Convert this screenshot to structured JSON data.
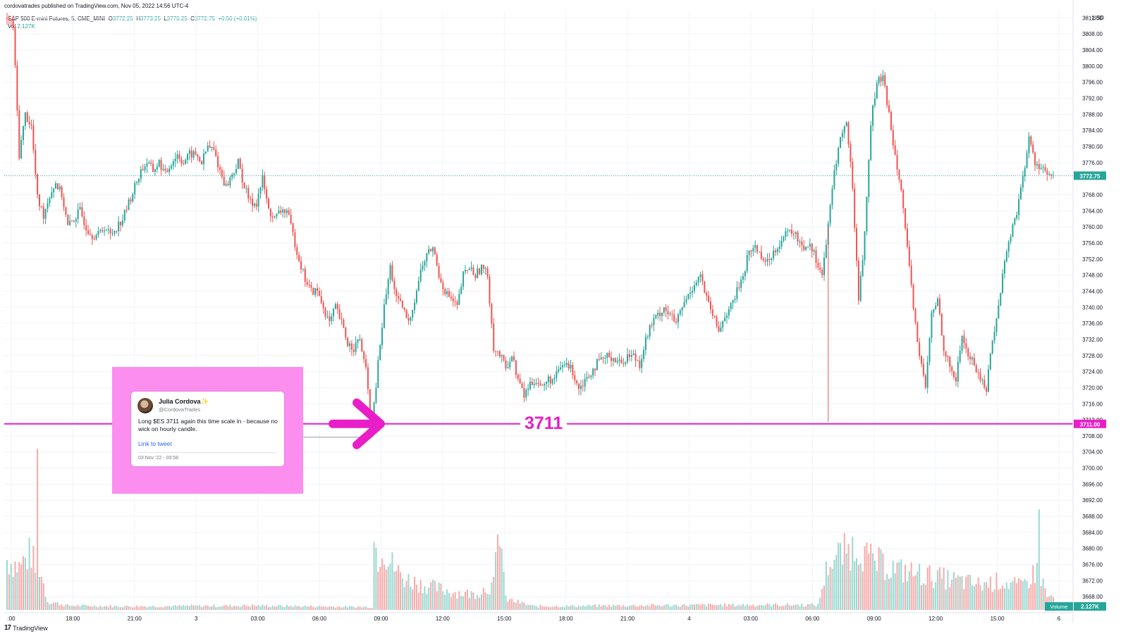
{
  "header": {
    "published": "cordovatrades published on TradingView.com, Nov 05, 2022 14:56 UTC-4",
    "symbol": "S&P 500 E-mini Futures, 5, CME_MINI",
    "o_label": "O",
    "o_value": "3772.25",
    "h_label": "H",
    "h_value": "3773.25",
    "l_label": "L",
    "l_value": "3770.25",
    "c_label": "C",
    "c_value": "3772.75",
    "change": "+0.50 (+0.01%)",
    "vol_label": "Vol",
    "vol_value": "2.127K"
  },
  "footer": {
    "brand": "TradingView",
    "logo_glyph": "17"
  },
  "tweet": {
    "name": "Julia Cordova",
    "badge": "✨",
    "handle": "@CordovaTrades",
    "text": "Long $ES 3711 again this time scale in - because no wick on hourly candle.",
    "link": "Link to tweet",
    "date": "03 Nov '22 - 09:58"
  },
  "annotation": {
    "level_text": "3711"
  },
  "colors": {
    "up": "#26a69a",
    "down": "#ef5350",
    "accent": "#e91ec8",
    "box": "#fc8ef0",
    "last_price": "#26a69a"
  },
  "chart_data": {
    "type": "candlestick",
    "currency": "USD",
    "y_range": [
      3664,
      3814
    ],
    "y_ticks": [
      "3812.00",
      "3808.00",
      "3804.00",
      "3800.00",
      "3796.00",
      "3792.00",
      "3788.00",
      "3784.00",
      "3780.00",
      "3776.00",
      "3768.00",
      "3764.00",
      "3760.00",
      "3756.00",
      "3752.00",
      "3748.00",
      "3744.00",
      "3740.00",
      "3736.00",
      "3732.00",
      "3728.00",
      "3724.00",
      "3720.00",
      "3716.00",
      "3712.00",
      "3708.00",
      "3704.00",
      "3700.00",
      "3696.00",
      "3692.00",
      "3688.00",
      "3684.00",
      "3680.00",
      "3676.00",
      "3672.00",
      "3668.00"
    ],
    "x_ticks": [
      ":00",
      "18:00",
      "21:00",
      "3",
      "03:00",
      "06:00",
      "09:00",
      "12:00",
      "15:00",
      "18:00",
      "21:00",
      "4",
      "03:00",
      "06:00",
      "09:00",
      "12:00",
      "15:00",
      "6"
    ],
    "last_price": "3772.75",
    "level_price": "3711.00",
    "volume_label": "Volume",
    "volume_value": "2.127K",
    "price_path": [
      [
        0,
        3812
      ],
      [
        3,
        3810
      ],
      [
        6,
        3778
      ],
      [
        9,
        3788
      ],
      [
        12,
        3785
      ],
      [
        15,
        3767
      ],
      [
        18,
        3763
      ],
      [
        21,
        3768
      ],
      [
        24,
        3771
      ],
      [
        27,
        3768
      ],
      [
        30,
        3760
      ],
      [
        33,
        3762
      ],
      [
        36,
        3764
      ],
      [
        39,
        3760
      ],
      [
        42,
        3758
      ],
      [
        45,
        3758
      ],
      [
        48,
        3760
      ],
      [
        51,
        3758
      ],
      [
        54,
        3760
      ],
      [
        57,
        3762
      ],
      [
        60,
        3766
      ],
      [
        63,
        3770
      ],
      [
        66,
        3774
      ],
      [
        69,
        3776
      ],
      [
        72,
        3774
      ],
      [
        75,
        3776
      ],
      [
        78,
        3773
      ],
      [
        81,
        3776
      ],
      [
        84,
        3778
      ],
      [
        87,
        3776
      ],
      [
        90,
        3778
      ],
      [
        93,
        3778
      ],
      [
        96,
        3776
      ],
      [
        99,
        3780
      ],
      [
        102,
        3779
      ],
      [
        105,
        3774
      ],
      [
        108,
        3770
      ],
      [
        111,
        3773
      ],
      [
        114,
        3776
      ],
      [
        117,
        3770
      ],
      [
        120,
        3766
      ],
      [
        123,
        3766
      ],
      [
        126,
        3772
      ],
      [
        129,
        3764
      ],
      [
        132,
        3762
      ],
      [
        135,
        3764
      ],
      [
        138,
        3764
      ],
      [
        141,
        3758
      ],
      [
        144,
        3752
      ],
      [
        147,
        3747
      ],
      [
        150,
        3744
      ],
      [
        153,
        3744
      ],
      [
        156,
        3740
      ],
      [
        159,
        3736
      ],
      [
        162,
        3740
      ],
      [
        165,
        3736
      ],
      [
        168,
        3731
      ],
      [
        171,
        3730
      ],
      [
        174,
        3732
      ],
      [
        177,
        3724
      ],
      [
        180,
        3710
      ],
      [
        183,
        3726
      ],
      [
        186,
        3740
      ],
      [
        189,
        3750
      ],
      [
        192,
        3742
      ],
      [
        195,
        3740
      ],
      [
        198,
        3736
      ],
      [
        201,
        3742
      ],
      [
        204,
        3749
      ],
      [
        207,
        3753
      ],
      [
        210,
        3755
      ],
      [
        213,
        3748
      ],
      [
        216,
        3744
      ],
      [
        219,
        3742
      ],
      [
        222,
        3740
      ],
      [
        225,
        3748
      ],
      [
        228,
        3750
      ],
      [
        231,
        3748
      ],
      [
        234,
        3750
      ],
      [
        237,
        3748
      ],
      [
        240,
        3730
      ],
      [
        243,
        3728
      ],
      [
        246,
        3725
      ],
      [
        249,
        3728
      ],
      [
        252,
        3722
      ],
      [
        255,
        3718
      ],
      [
        258,
        3721
      ],
      [
        261,
        3722
      ],
      [
        264,
        3720
      ],
      [
        267,
        3722
      ],
      [
        270,
        3722
      ],
      [
        273,
        3725
      ],
      [
        276,
        3726
      ],
      [
        279,
        3724
      ],
      [
        282,
        3720
      ],
      [
        285,
        3722
      ],
      [
        288,
        3724
      ],
      [
        291,
        3726
      ],
      [
        294,
        3727
      ],
      [
        297,
        3728
      ],
      [
        300,
        3727
      ],
      [
        303,
        3726
      ],
      [
        306,
        3728
      ],
      [
        309,
        3728
      ],
      [
        312,
        3726
      ],
      [
        315,
        3732
      ],
      [
        318,
        3736
      ],
      [
        321,
        3738
      ],
      [
        324,
        3740
      ],
      [
        327,
        3738
      ],
      [
        330,
        3736
      ],
      [
        333,
        3740
      ],
      [
        336,
        3743
      ],
      [
        339,
        3746
      ],
      [
        342,
        3748
      ],
      [
        345,
        3742
      ],
      [
        348,
        3738
      ],
      [
        351,
        3734
      ],
      [
        354,
        3738
      ],
      [
        357,
        3740
      ],
      [
        360,
        3744
      ],
      [
        363,
        3748
      ],
      [
        366,
        3754
      ],
      [
        369,
        3755
      ],
      [
        372,
        3753
      ],
      [
        375,
        3751
      ],
      [
        378,
        3754
      ],
      [
        381,
        3756
      ],
      [
        384,
        3758
      ],
      [
        387,
        3759
      ],
      [
        390,
        3757
      ],
      [
        393,
        3755
      ],
      [
        396,
        3756
      ],
      [
        399,
        3752
      ],
      [
        402,
        3748
      ],
      [
        405,
        3760
      ],
      [
        408,
        3774
      ],
      [
        411,
        3782
      ],
      [
        414,
        3786
      ],
      [
        417,
        3770
      ],
      [
        420,
        3742
      ],
      [
        423,
        3758
      ],
      [
        426,
        3786
      ],
      [
        429,
        3796
      ],
      [
        432,
        3797
      ],
      [
        435,
        3788
      ],
      [
        438,
        3778
      ],
      [
        441,
        3770
      ],
      [
        444,
        3754
      ],
      [
        447,
        3740
      ],
      [
        450,
        3728
      ],
      [
        453,
        3720
      ],
      [
        456,
        3738
      ],
      [
        459,
        3742
      ],
      [
        462,
        3730
      ],
      [
        465,
        3725
      ],
      [
        468,
        3722
      ],
      [
        471,
        3733
      ],
      [
        474,
        3728
      ],
      [
        477,
        3726
      ],
      [
        480,
        3722
      ],
      [
        483,
        3720
      ],
      [
        486,
        3732
      ],
      [
        489,
        3740
      ],
      [
        492,
        3752
      ],
      [
        495,
        3758
      ],
      [
        498,
        3764
      ],
      [
        501,
        3772
      ],
      [
        504,
        3782
      ],
      [
        507,
        3776
      ],
      [
        510,
        3775
      ],
      [
        513,
        3773
      ],
      [
        516,
        3772
      ]
    ],
    "volume_profile": [
      [
        0,
        70
      ],
      [
        6,
        60
      ],
      [
        12,
        80
      ],
      [
        14,
        55
      ],
      [
        15,
        200
      ],
      [
        16,
        60
      ],
      [
        20,
        12
      ],
      [
        30,
        6
      ],
      [
        60,
        5
      ],
      [
        120,
        6
      ],
      [
        180,
        4
      ],
      [
        181,
        95
      ],
      [
        183,
        75
      ],
      [
        185,
        95
      ],
      [
        188,
        70
      ],
      [
        195,
        45
      ],
      [
        205,
        35
      ],
      [
        220,
        25
      ],
      [
        230,
        22
      ],
      [
        240,
        35
      ],
      [
        243,
        120
      ],
      [
        246,
        15
      ],
      [
        260,
        5
      ],
      [
        300,
        6
      ],
      [
        360,
        7
      ],
      [
        400,
        7
      ],
      [
        405,
        65
      ],
      [
        410,
        75
      ],
      [
        420,
        90
      ],
      [
        425,
        70
      ],
      [
        440,
        55
      ],
      [
        460,
        45
      ],
      [
        480,
        35
      ],
      [
        490,
        40
      ],
      [
        500,
        32
      ],
      [
        508,
        55
      ],
      [
        509,
        140
      ],
      [
        510,
        45
      ],
      [
        513,
        18
      ],
      [
        516,
        18
      ]
    ]
  }
}
